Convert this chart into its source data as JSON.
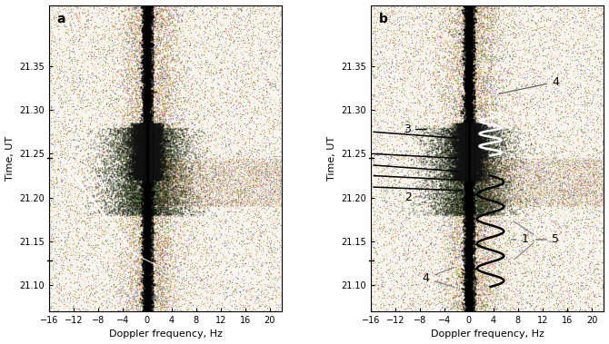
{
  "xlim": [
    -16,
    22
  ],
  "ylim": [
    21.07,
    21.42
  ],
  "yticks": [
    21.1,
    21.15,
    21.2,
    21.25,
    21.3,
    21.35
  ],
  "xticks": [
    -16,
    -12,
    -8,
    -4,
    0,
    4,
    8,
    12,
    16,
    20
  ],
  "xlabel": "Doppler frequency, Hz",
  "ylabel": "Time, UT",
  "panel_a_label": "a",
  "panel_b_label": "b",
  "bg_color": "#f8f4ee",
  "seed_a": 42,
  "seed_b": 99
}
